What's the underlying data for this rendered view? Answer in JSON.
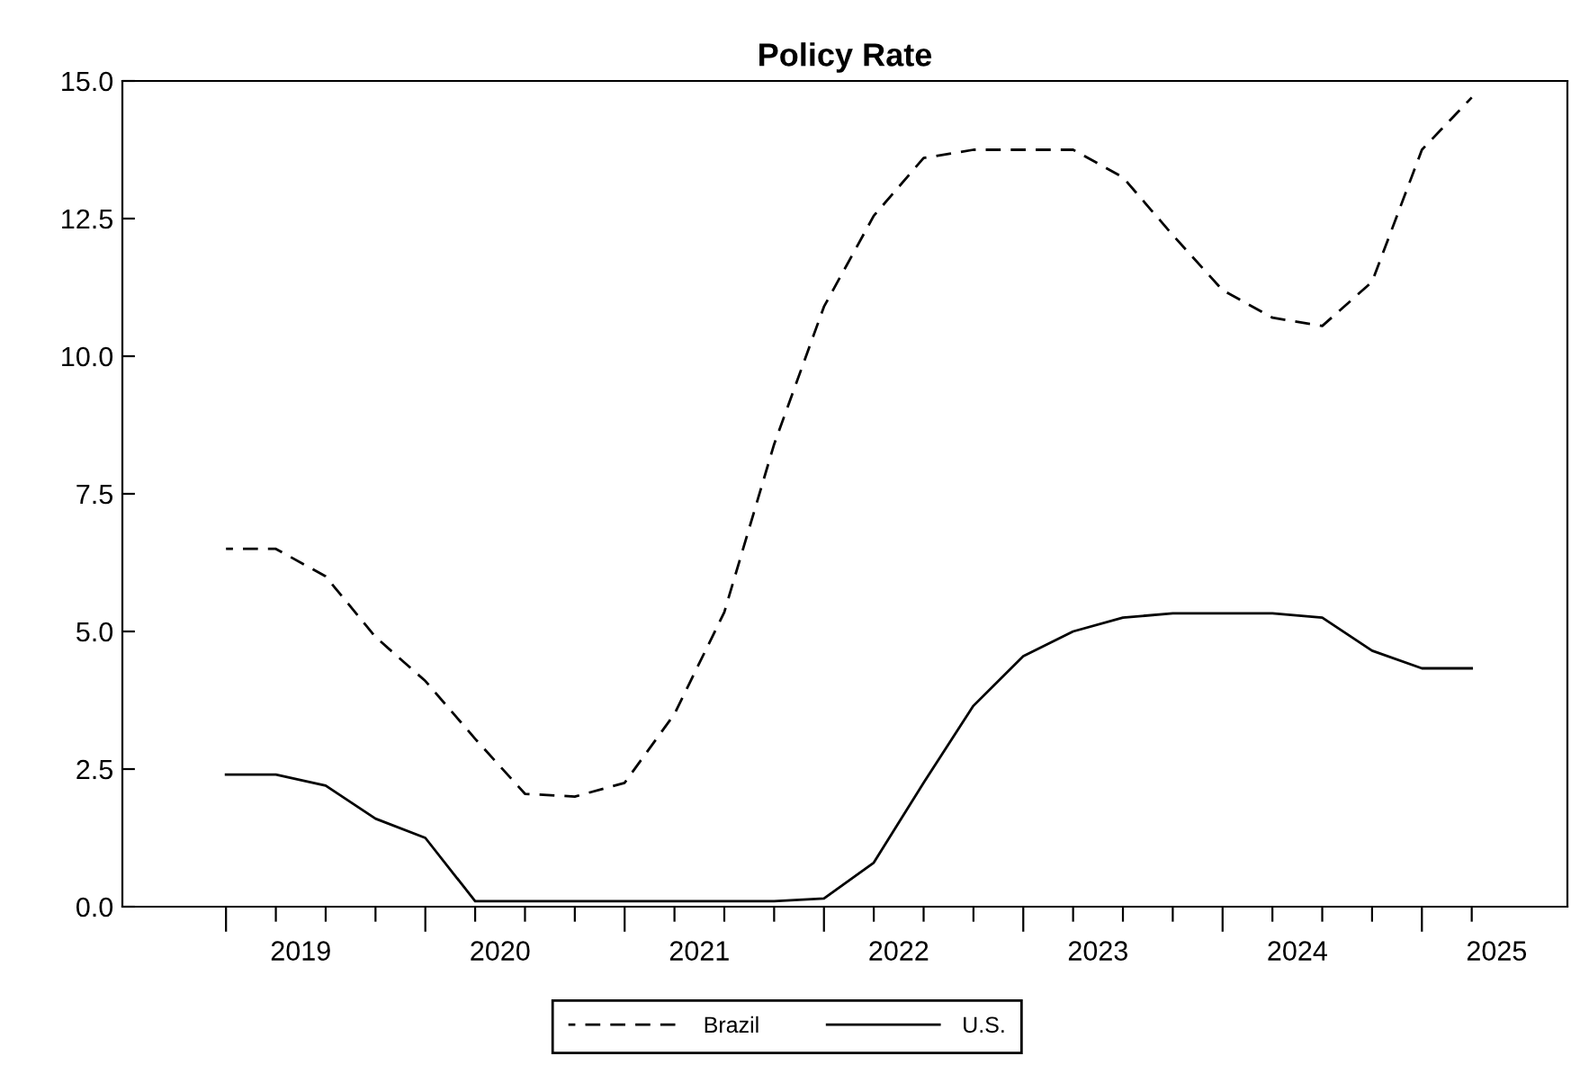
{
  "chart_data": {
    "type": "line",
    "title": "Policy Rate",
    "x": [
      2019.0,
      2019.25,
      2019.5,
      2019.75,
      2020.0,
      2020.25,
      2020.5,
      2020.75,
      2021.0,
      2021.25,
      2021.5,
      2021.75,
      2022.0,
      2022.25,
      2022.5,
      2022.75,
      2023.0,
      2023.25,
      2023.5,
      2023.75,
      2024.0,
      2024.25,
      2024.5,
      2024.75,
      2025.0,
      2025.25
    ],
    "series": [
      {
        "name": "Brazil",
        "color": "#000000",
        "line_style": "dashed",
        "values": [
          6.5,
          6.5,
          6.0,
          4.9,
          4.1,
          3.05,
          2.05,
          2.0,
          2.25,
          3.5,
          5.35,
          8.4,
          10.9,
          12.55,
          13.6,
          13.75,
          13.75,
          13.75,
          13.25,
          12.2,
          11.2,
          10.7,
          10.55,
          11.35,
          13.75,
          14.7
        ]
      },
      {
        "name": "U.S.",
        "color": "#000000",
        "line_style": "solid",
        "values": [
          2.4,
          2.4,
          2.2,
          1.6,
          1.25,
          0.1,
          0.1,
          0.1,
          0.1,
          0.1,
          0.1,
          0.1,
          0.15,
          0.8,
          2.25,
          3.65,
          4.55,
          5.0,
          5.25,
          5.33,
          5.33,
          5.33,
          5.25,
          4.65,
          4.33,
          4.33
        ]
      }
    ],
    "xlim": [
      2018.48,
      2025.73
    ],
    "ylim": [
      0.0,
      15.0
    ],
    "yticks": [
      {
        "value": 0,
        "label": "0.0"
      },
      2.5,
      {
        "value": 5,
        "label": "5.0"
      },
      7.5,
      {
        "value": 10,
        "label": "10.0"
      },
      12.5,
      {
        "value": 15,
        "label": "15.0"
      }
    ],
    "xticks": [
      {
        "value": 2019.0,
        "label": null
      },
      {
        "value": 2019.25,
        "label": null
      },
      {
        "value": 2019.375,
        "label": "2019"
      },
      {
        "value": 2019.5,
        "label": null
      },
      {
        "value": 2019.75,
        "label": null
      },
      {
        "value": 2020.0,
        "label": null
      },
      {
        "value": 2020.25,
        "label": null
      },
      {
        "value": 2020.375,
        "label": "2020"
      },
      {
        "value": 2020.5,
        "label": null
      },
      {
        "value": 2020.75,
        "label": null
      },
      {
        "value": 2021.0,
        "label": null
      },
      {
        "value": 2021.25,
        "label": null
      },
      {
        "value": 2021.375,
        "label": "2021"
      },
      {
        "value": 2021.5,
        "label": null
      },
      {
        "value": 2021.75,
        "label": null
      },
      {
        "value": 2022.0,
        "label": null
      },
      {
        "value": 2022.25,
        "label": null
      },
      {
        "value": 2022.375,
        "label": "2022"
      },
      {
        "value": 2022.5,
        "label": null
      },
      {
        "value": 2022.75,
        "label": null
      },
      {
        "value": 2023.0,
        "label": null
      },
      {
        "value": 2023.25,
        "label": null
      },
      {
        "value": 2023.375,
        "label": "2023"
      },
      {
        "value": 2023.5,
        "label": null
      },
      {
        "value": 2023.75,
        "label": null
      },
      {
        "value": 2024.0,
        "label": null
      },
      {
        "value": 2024.25,
        "label": null
      },
      {
        "value": 2024.375,
        "label": "2024"
      },
      {
        "value": 2024.5,
        "label": null
      },
      {
        "value": 2024.75,
        "label": null
      },
      {
        "value": 2025.0,
        "label": null
      },
      {
        "value": 2025.25,
        "label": null
      },
      {
        "value": 2025.375,
        "label": "2025"
      }
    ],
    "legend": "bottom",
    "grid": false,
    "marker": "none"
  }
}
